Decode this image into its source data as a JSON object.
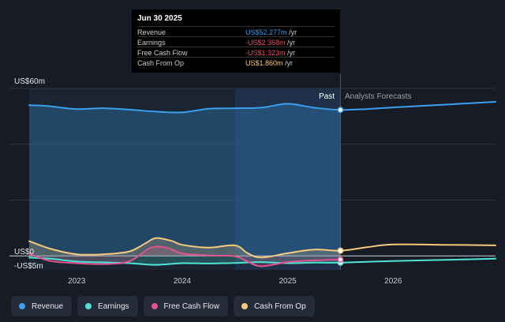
{
  "tooltip": {
    "date": "Jun 30 2025",
    "rows": [
      {
        "name": "Revenue",
        "value": "US$52.277m",
        "unit": "/yr",
        "color": "#3b9fec"
      },
      {
        "name": "Earnings",
        "value": "-US$2.368m",
        "unit": "/yr",
        "color": "#ef4b5d"
      },
      {
        "name": "Free Cash Flow",
        "value": "-US$1.323m",
        "unit": "/yr",
        "color": "#ef4b5d"
      },
      {
        "name": "Cash From Op",
        "value": "US$1.860m",
        "unit": "/yr",
        "color": "#f7c97e"
      }
    ]
  },
  "legend": [
    {
      "label": "Revenue",
      "color": "#3b9fec"
    },
    {
      "label": "Earnings",
      "color": "#4fe3d4"
    },
    {
      "label": "Free Cash Flow",
      "color": "#e3538f"
    },
    {
      "label": "Cash From Op",
      "color": "#f7c97e"
    }
  ],
  "chart_data": {
    "type": "line",
    "y_tick_labels": [
      "US$60m",
      "US$0",
      "-US$5m"
    ],
    "ylim": [
      -5,
      60
    ],
    "xlim": [
      2022.55,
      2026.97
    ],
    "x_ticks": [
      2023,
      2024,
      2025,
      2026
    ],
    "x_tick_labels": [
      "2023",
      "2024",
      "2025",
      "2026"
    ],
    "past_label": "Past",
    "forecast_label": "Analysts Forecasts",
    "past_end": 2025.5,
    "highlight_start": 2024.5,
    "series": [
      {
        "name": "Revenue",
        "color": "#3b9fec",
        "points": [
          [
            2022.55,
            54.0
          ],
          [
            2022.75,
            53.6
          ],
          [
            2023.0,
            52.6
          ],
          [
            2023.25,
            52.9
          ],
          [
            2023.5,
            52.4
          ],
          [
            2023.75,
            51.7
          ],
          [
            2024.0,
            51.4
          ],
          [
            2024.25,
            52.7
          ],
          [
            2024.5,
            52.9
          ],
          [
            2024.75,
            53.1
          ],
          [
            2025.0,
            54.5
          ],
          [
            2025.25,
            53.1
          ],
          [
            2025.5,
            52.3
          ],
          [
            2025.75,
            52.6
          ],
          [
            2026.0,
            53.2
          ],
          [
            2026.5,
            54.2
          ],
          [
            2026.97,
            55.2
          ]
        ]
      },
      {
        "name": "Earnings",
        "color": "#4fe3d4",
        "points": [
          [
            2022.55,
            -0.6
          ],
          [
            2022.75,
            -1.0
          ],
          [
            2023.0,
            -2.0
          ],
          [
            2023.25,
            -2.3
          ],
          [
            2023.5,
            -2.6
          ],
          [
            2023.75,
            -3.2
          ],
          [
            2024.0,
            -2.6
          ],
          [
            2024.25,
            -2.7
          ],
          [
            2024.5,
            -2.5
          ],
          [
            2024.75,
            -2.2
          ],
          [
            2025.0,
            -2.6
          ],
          [
            2025.25,
            -2.4
          ],
          [
            2025.5,
            -2.4
          ],
          [
            2025.75,
            -2.1
          ],
          [
            2026.0,
            -1.8
          ],
          [
            2026.5,
            -1.4
          ],
          [
            2026.97,
            -1.0
          ]
        ]
      },
      {
        "name": "Free Cash Flow",
        "color": "#e3538f",
        "points": [
          [
            2022.55,
            0.8
          ],
          [
            2022.75,
            -1.8
          ],
          [
            2023.0,
            -2.6
          ],
          [
            2023.25,
            -2.9
          ],
          [
            2023.5,
            -1.9
          ],
          [
            2023.7,
            2.9
          ],
          [
            2023.85,
            3.0
          ],
          [
            2024.0,
            0.9
          ],
          [
            2024.25,
            0.2
          ],
          [
            2024.5,
            -0.1
          ],
          [
            2024.62,
            -2.0
          ],
          [
            2024.75,
            -3.7
          ],
          [
            2025.0,
            -2.2
          ],
          [
            2025.25,
            -1.6
          ],
          [
            2025.5,
            -1.3
          ]
        ]
      },
      {
        "name": "Cash From Op",
        "color": "#f7c97e",
        "points": [
          [
            2022.55,
            5.3
          ],
          [
            2022.75,
            2.6
          ],
          [
            2023.0,
            0.6
          ],
          [
            2023.25,
            0.6
          ],
          [
            2023.5,
            1.6
          ],
          [
            2023.65,
            4.5
          ],
          [
            2023.75,
            6.4
          ],
          [
            2023.9,
            5.4
          ],
          [
            2024.0,
            4.0
          ],
          [
            2024.25,
            3.0
          ],
          [
            2024.5,
            3.8
          ],
          [
            2024.62,
            1.0
          ],
          [
            2024.75,
            -0.6
          ],
          [
            2025.0,
            1.0
          ],
          [
            2025.25,
            2.3
          ],
          [
            2025.5,
            1.9
          ],
          [
            2025.75,
            3.1
          ],
          [
            2026.0,
            4.1
          ],
          [
            2026.5,
            4.0
          ],
          [
            2026.97,
            3.8
          ]
        ]
      }
    ]
  }
}
